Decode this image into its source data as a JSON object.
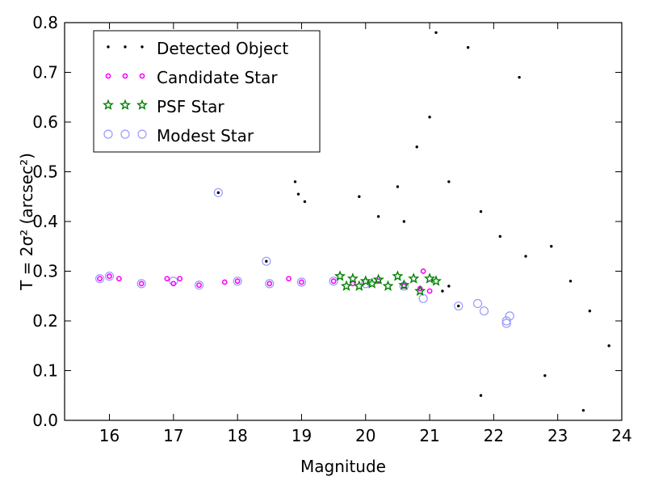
{
  "chart_data": {
    "type": "scatter",
    "xlabel": "Magnitude",
    "ylabel": "T = 2σ² (arcsec²)",
    "xlim": [
      15.3,
      24.0
    ],
    "ylim": [
      0.0,
      0.8
    ],
    "x_ticks": [
      16,
      17,
      18,
      19,
      20,
      21,
      22,
      23,
      24
    ],
    "y_ticks": [
      0.0,
      0.1,
      0.2,
      0.3,
      0.4,
      0.5,
      0.6,
      0.7,
      0.8
    ],
    "legend_position": "top-left",
    "grid": false,
    "series": [
      {
        "name": "Detected Object",
        "marker": "dot",
        "color": "#000000",
        "sample_points": [
          [
            17.7,
            0.458
          ],
          [
            18.45,
            0.32
          ],
          [
            18.9,
            0.48
          ],
          [
            18.95,
            0.455
          ],
          [
            19.05,
            0.44
          ],
          [
            19.9,
            0.45
          ],
          [
            20.2,
            0.41
          ],
          [
            20.5,
            0.47
          ],
          [
            20.6,
            0.4
          ],
          [
            20.8,
            0.55
          ],
          [
            21.0,
            0.61
          ],
          [
            21.3,
            0.48
          ],
          [
            21.8,
            0.42
          ],
          [
            22.1,
            0.37
          ],
          [
            22.5,
            0.33
          ],
          [
            22.9,
            0.35
          ],
          [
            23.2,
            0.28
          ],
          [
            23.5,
            0.22
          ],
          [
            23.8,
            0.15
          ],
          [
            23.4,
            0.02
          ],
          [
            21.8,
            0.05
          ],
          [
            22.8,
            0.09
          ],
          [
            21.6,
            0.75
          ],
          [
            22.4,
            0.69
          ],
          [
            21.1,
            0.78
          ],
          [
            21.3,
            0.27
          ],
          [
            21.45,
            0.23
          ],
          [
            21.2,
            0.26
          ]
        ]
      },
      {
        "name": "Candidate Star",
        "marker": "circle",
        "color": "#ff00ff",
        "sample_points": [
          [
            15.85,
            0.285
          ],
          [
            16.0,
            0.29
          ],
          [
            16.15,
            0.285
          ],
          [
            16.5,
            0.275
          ],
          [
            16.9,
            0.285
          ],
          [
            17.0,
            0.275
          ],
          [
            17.1,
            0.285
          ],
          [
            17.4,
            0.272
          ],
          [
            17.8,
            0.278
          ],
          [
            18.0,
            0.28
          ],
          [
            18.5,
            0.275
          ],
          [
            18.8,
            0.285
          ],
          [
            19.0,
            0.278
          ],
          [
            19.5,
            0.28
          ],
          [
            19.8,
            0.275
          ],
          [
            20.2,
            0.28
          ],
          [
            20.6,
            0.27
          ],
          [
            20.85,
            0.265
          ],
          [
            20.9,
            0.3
          ],
          [
            21.0,
            0.26
          ]
        ]
      },
      {
        "name": "PSF Star",
        "marker": "star",
        "color": "#008000",
        "sample_points": [
          [
            19.6,
            0.29
          ],
          [
            19.7,
            0.27
          ],
          [
            19.8,
            0.285
          ],
          [
            19.9,
            0.27
          ],
          [
            20.0,
            0.28
          ],
          [
            20.1,
            0.275
          ],
          [
            20.2,
            0.283
          ],
          [
            20.35,
            0.27
          ],
          [
            20.5,
            0.29
          ],
          [
            20.6,
            0.272
          ],
          [
            20.75,
            0.285
          ],
          [
            20.85,
            0.26
          ],
          [
            21.0,
            0.285
          ],
          [
            21.1,
            0.28
          ]
        ]
      },
      {
        "name": "Modest Star",
        "marker": "open-circle",
        "color": "#9999ff",
        "sample_points": [
          [
            15.85,
            0.285
          ],
          [
            16.0,
            0.29
          ],
          [
            16.5,
            0.275
          ],
          [
            17.0,
            0.28
          ],
          [
            17.4,
            0.272
          ],
          [
            17.7,
            0.458
          ],
          [
            18.0,
            0.28
          ],
          [
            18.45,
            0.32
          ],
          [
            18.5,
            0.275
          ],
          [
            19.0,
            0.278
          ],
          [
            19.5,
            0.28
          ],
          [
            20.0,
            0.275
          ],
          [
            20.6,
            0.27
          ],
          [
            20.9,
            0.245
          ],
          [
            21.45,
            0.23
          ],
          [
            21.75,
            0.235
          ],
          [
            21.85,
            0.22
          ],
          [
            22.2,
            0.2
          ],
          [
            22.25,
            0.21
          ],
          [
            22.2,
            0.195
          ]
        ]
      }
    ]
  }
}
